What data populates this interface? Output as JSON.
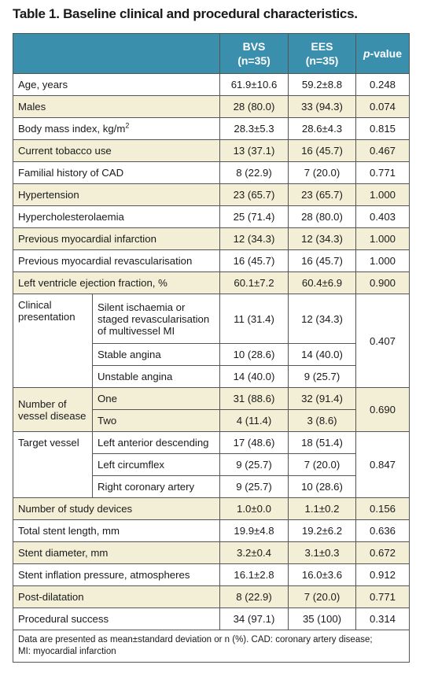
{
  "title": "Table 1. Baseline clinical and procedural characteristics.",
  "header": {
    "bvs": "BVS",
    "bvs_n": "(n=35)",
    "ees": "EES",
    "ees_n": "(n=35)",
    "p_letter": "p",
    "p_rest": "-value"
  },
  "rows": [
    {
      "label": "Age, years",
      "bvs": "61.9±10.6",
      "ees": "59.2±8.8",
      "p": "0.248"
    },
    {
      "label": "Males",
      "bvs": "28 (80.0)",
      "ees": "33 (94.3)",
      "p": "0.074"
    },
    {
      "label": "Body mass index, kg/m",
      "sup": "2",
      "bvs": "28.3±5.3",
      "ees": "28.6±4.3",
      "p": "0.815"
    },
    {
      "label": "Current tobacco use",
      "bvs": "13 (37.1)",
      "ees": "16 (45.7)",
      "p": "0.467"
    },
    {
      "label": "Familial history of CAD",
      "bvs": "8 (22.9)",
      "ees": "7 (20.0)",
      "p": "0.771"
    },
    {
      "label": "Hypertension",
      "bvs": "23 (65.7)",
      "ees": "23 (65.7)",
      "p": "1.000"
    },
    {
      "label": "Hypercholesterolaemia",
      "bvs": "25 (71.4)",
      "ees": "28 (80.0)",
      "p": "0.403"
    },
    {
      "label": "Previous myocardial infarction",
      "bvs": "12 (34.3)",
      "ees": "12 (34.3)",
      "p": "1.000"
    },
    {
      "label": "Previous myocardial revascularisation",
      "bvs": "16 (45.7)",
      "ees": "16 (45.7)",
      "p": "1.000"
    },
    {
      "label": "Left ventricle ejection fraction, %",
      "bvs": "60.1±7.2",
      "ees": "60.4±6.9",
      "p": "0.900"
    }
  ],
  "clinical": {
    "label_line1": "Clinical",
    "label_line2": "presentation",
    "p": "0.407",
    "subrows": [
      {
        "label_line1": "Silent ischaemia or",
        "label_line2": "staged revascularisation",
        "label_line3": "of multivessel MI",
        "bvs": "11 (31.4)",
        "ees": "12 (34.3)"
      },
      {
        "label": "Stable angina",
        "bvs": "10 (28.6)",
        "ees": "14 (40.0)"
      },
      {
        "label": "Unstable angina",
        "bvs": "14 (40.0)",
        "ees": "9 (25.7)"
      }
    ]
  },
  "vessel_disease": {
    "label_line1": "Number of",
    "label_line2": "vessel disease",
    "p": "0.690",
    "subrows": [
      {
        "label": "One",
        "bvs": "31 (88.6)",
        "ees": "32 (91.4)"
      },
      {
        "label": "Two",
        "bvs": "4 (11.4)",
        "ees": "3 (8.6)"
      }
    ]
  },
  "target_vessel": {
    "label": "Target vessel",
    "p": "0.847",
    "subrows": [
      {
        "label": "Left anterior descending",
        "bvs": "17 (48.6)",
        "ees": "18 (51.4)"
      },
      {
        "label": "Left circumflex",
        "bvs": "9 (25.7)",
        "ees": "7 (20.0)"
      },
      {
        "label": "Right coronary artery",
        "bvs": "9 (25.7)",
        "ees": "10 (28.6)"
      }
    ]
  },
  "rows2": [
    {
      "label": "Number of study devices",
      "bvs": "1.0±0.0",
      "ees": "1.1±0.2",
      "p": "0.156"
    },
    {
      "label": "Total stent length, mm",
      "bvs": "19.9±4.8",
      "ees": "19.2±6.2",
      "p": "0.636"
    },
    {
      "label": "Stent diameter, mm",
      "bvs": "3.2±0.4",
      "ees": "3.1±0.3",
      "p": "0.672"
    },
    {
      "label": "Stent inflation pressure, atmospheres",
      "bvs": "16.1±2.8",
      "ees": "16.0±3.6",
      "p": "0.912"
    },
    {
      "label": "Post-dilatation",
      "bvs": "8 (22.9)",
      "ees": "7 (20.0)",
      "p": "0.771"
    },
    {
      "label": "Procedural success",
      "bvs": "34 (97.1)",
      "ees": "35 (100)",
      "p": "0.314"
    }
  ],
  "footnote_line1": "Data are presented as mean±standard deviation or n (%). CAD: coronary artery disease;",
  "footnote_line2": "MI: myocardial infarction",
  "colors": {
    "header": "#3a8fad",
    "shade": "#f2efd6"
  }
}
